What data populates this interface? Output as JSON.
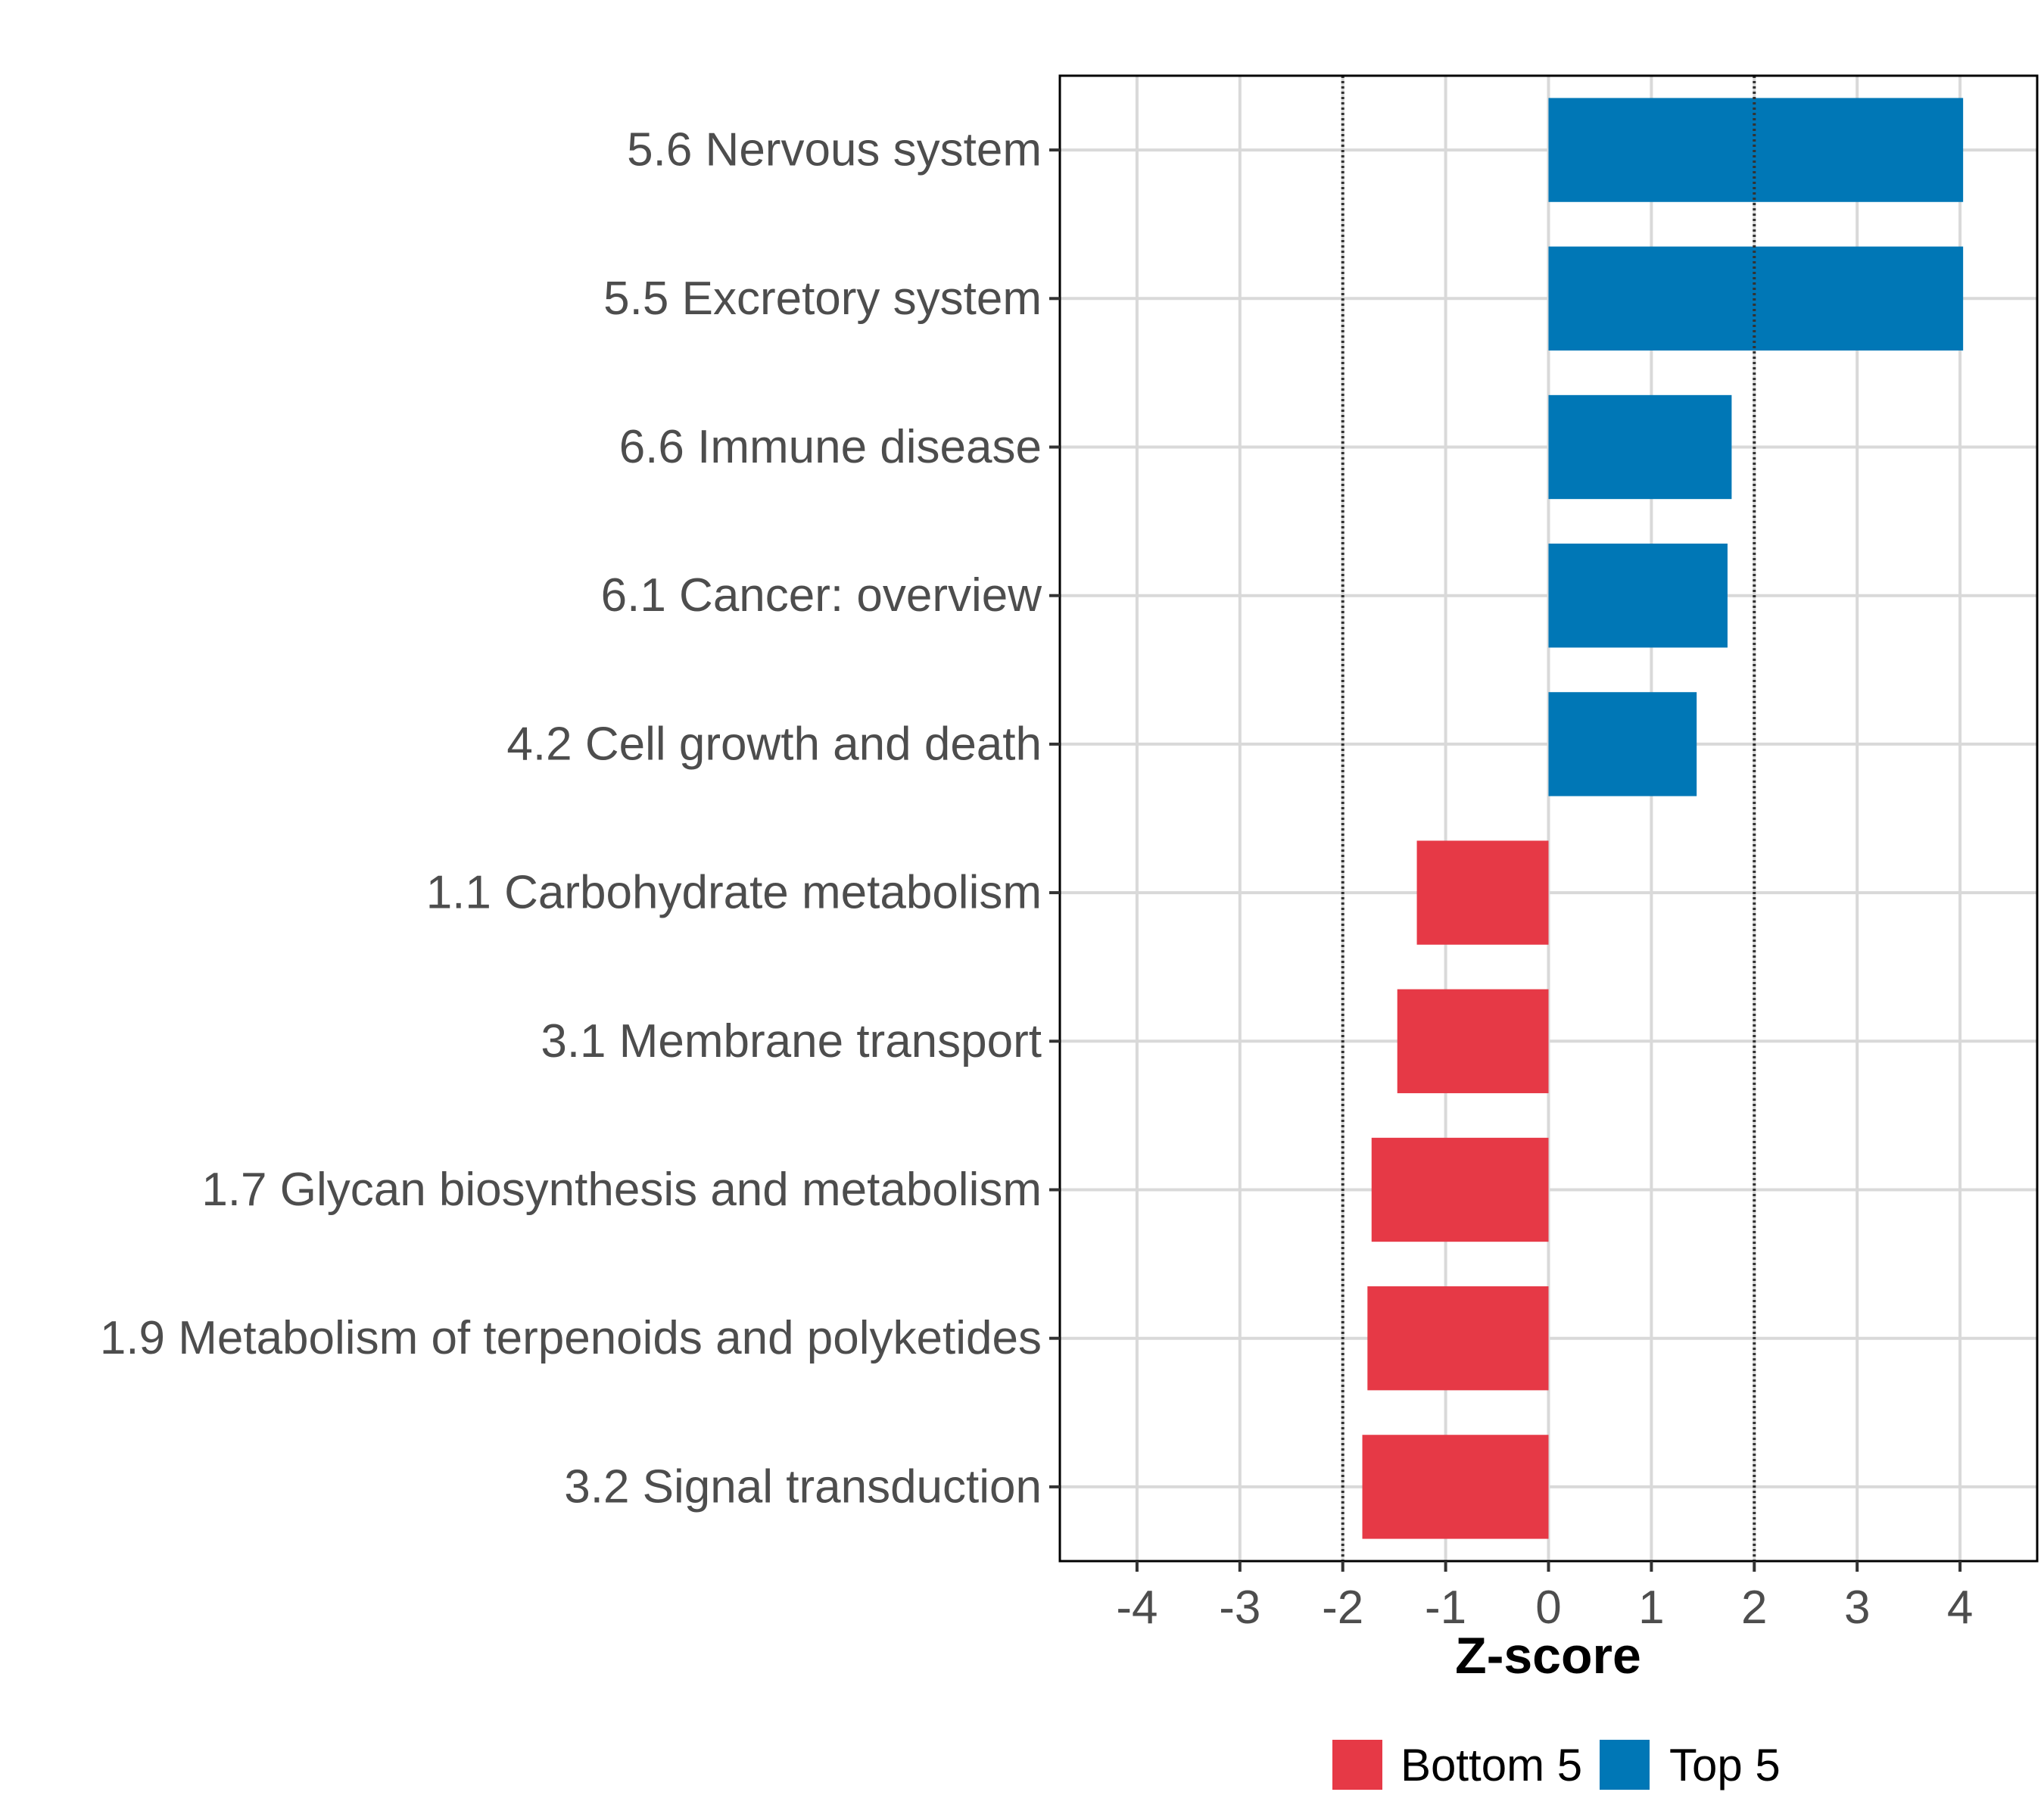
{
  "chart_data": {
    "type": "bar",
    "orientation": "horizontal",
    "title": "",
    "xlabel": "Z-score",
    "ylabel": "",
    "xlim": [
      -4.75,
      4.75
    ],
    "x_ticks": [
      -4,
      -3,
      -2,
      -1,
      0,
      1,
      2,
      3,
      4
    ],
    "reference_lines": [
      -2,
      2
    ],
    "grid": true,
    "legend_position": "bottom",
    "colors": {
      "Bottom 5": "#e63946",
      "Top 5": "#0077b6"
    },
    "legend": [
      "Bottom 5",
      "Top 5"
    ],
    "categories": [
      "5.6 Nervous system",
      "5.5 Excretory system",
      "6.6 Immune disease",
      "6.1 Cancer: overview",
      "4.2 Cell growth and death",
      "1.1 Carbohydrate metabolism",
      "3.1 Membrane transport",
      "1.7 Glycan biosynthesis and metabolism",
      "1.9 Metabolism of terpenoids and polyketides",
      "3.2 Signal transduction"
    ],
    "values": [
      4.03,
      4.03,
      1.78,
      1.74,
      1.44,
      -1.28,
      -1.47,
      -1.72,
      -1.76,
      -1.81
    ],
    "groups": [
      "Top 5",
      "Top 5",
      "Top 5",
      "Top 5",
      "Top 5",
      "Bottom 5",
      "Bottom 5",
      "Bottom 5",
      "Bottom 5",
      "Bottom 5"
    ]
  }
}
